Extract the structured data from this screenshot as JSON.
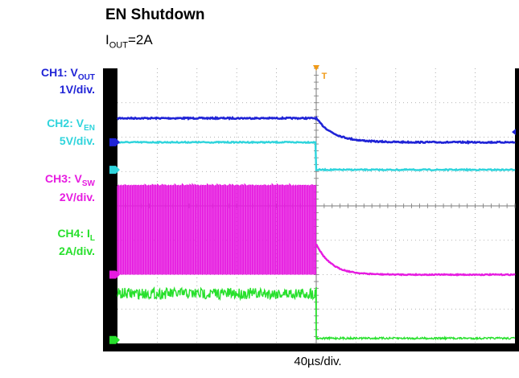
{
  "chart_data": {
    "type": "line",
    "title": "EN Shutdown",
    "subtitle": {
      "main": "I",
      "sub": "OUT",
      "suffix": "=2A"
    },
    "xlabel": "40µs/div.",
    "ylabel": "",
    "divisions": {
      "x": 10,
      "y": 8
    },
    "trigger_marker": "T",
    "event_division": 5,
    "xlim": [
      0,
      10
    ],
    "ylim": [
      0,
      8
    ],
    "series": [
      {
        "channel": "CH1",
        "label": {
          "main": "CH1: V",
          "sub": "OUT"
        },
        "scale": "1V/div.",
        "color": "#1f23d6",
        "baseline_div": 5.85,
        "before_div": 6.55,
        "after_div": 5.85,
        "shape": "decay"
      },
      {
        "channel": "CH2",
        "label": {
          "main": "CH2: V",
          "sub": "EN"
        },
        "scale": "5V/div.",
        "color": "#2fd4dc",
        "baseline_div": 5.05,
        "before_div": 5.85,
        "after_div": 5.05,
        "shape": "step"
      },
      {
        "channel": "CH3",
        "label": {
          "main": "CH3: V",
          "sub": "SW"
        },
        "scale": "2V/div.",
        "color": "#e61be0",
        "baseline_div": 2.0,
        "before_low_div": 2.0,
        "before_high_div": 4.6,
        "after_div": 2.0,
        "start_div": 2.55,
        "shape": "switching"
      },
      {
        "channel": "CH4",
        "label": {
          "main": "CH4: I",
          "sub": "L"
        },
        "scale": "2A/div.",
        "color": "#27e02c",
        "baseline_div": 0.1,
        "before_div": 1.45,
        "after_div": 0.15,
        "shape": "step"
      }
    ]
  }
}
